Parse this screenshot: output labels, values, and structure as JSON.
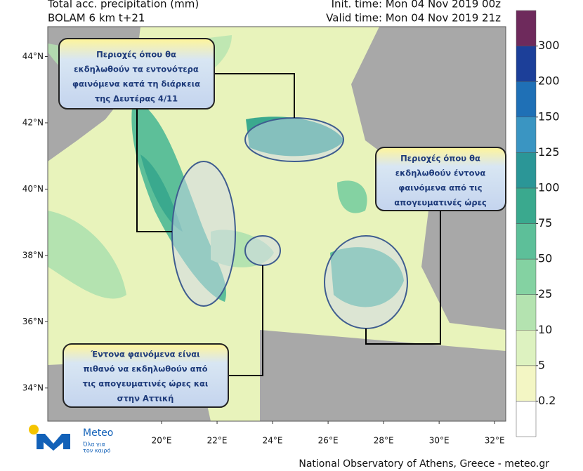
{
  "header": {
    "title": "Total acc. precipitation (mm)",
    "model": "BOLAM 6 km t+21",
    "init_time": "Init. time: Mon 04 Nov 2019 00z",
    "valid_time": "Valid time: Mon 04 Nov 2019 21z"
  },
  "map": {
    "latlim": [
      33.0,
      44.9
    ],
    "lonlim": [
      15.9,
      32.4
    ],
    "lat_ticks": [
      {
        "value": 34,
        "label": "34°N"
      },
      {
        "value": 36,
        "label": "36°N"
      },
      {
        "value": 38,
        "label": "38°N"
      },
      {
        "value": 40,
        "label": "40°N"
      },
      {
        "value": 42,
        "label": "42°N"
      },
      {
        "value": 44,
        "label": "44°N"
      }
    ],
    "lon_ticks": [
      {
        "value": 20,
        "label": "20°E"
      },
      {
        "value": 22,
        "label": "22°E"
      },
      {
        "value": 24,
        "label": "24°E"
      },
      {
        "value": 26,
        "label": "26°E"
      },
      {
        "value": 28,
        "label": "28°E"
      },
      {
        "value": 30,
        "label": "30°E"
      },
      {
        "value": 32,
        "label": "32°E"
      }
    ]
  },
  "colorbar": {
    "ticks": [
      0.2,
      5,
      10,
      25,
      50,
      75,
      100,
      125,
      150,
      200,
      300
    ],
    "colors": [
      "#ffffff",
      "#f3f6c4",
      "#ddf2c0",
      "#b4e3b0",
      "#84d2a2",
      "#5dbf99",
      "#3aa98e",
      "#2b9697",
      "#3a95c2",
      "#1f70b6",
      "#1c3f99",
      "#6e2a5c"
    ]
  },
  "callouts": [
    {
      "lines": [
        "Περιοχές όπου θα",
        "εκδηλωθούν τα εντονότερα",
        "φαινόμενα κατά τη διάρκεια",
        "της Δευτέρας 4/11"
      ]
    },
    {
      "lines": [
        "Περιοχές όπου θα",
        "εκδηλωθούν έντονα",
        "φαινόμενα από τις",
        "απογευματινές ώρες"
      ]
    },
    {
      "lines": [
        "Έντονα φαινόμενα είναι",
        "πιθανό να εκδηλωθούν από",
        "τις απογευματινές ώρες και",
        "στην Αττική"
      ]
    }
  ],
  "logo": {
    "name": "Meteo",
    "tagline": [
      "Όλα για",
      "τον καιρό"
    ]
  },
  "footer": "National Observatory of Athens, Greece - meteo.gr"
}
